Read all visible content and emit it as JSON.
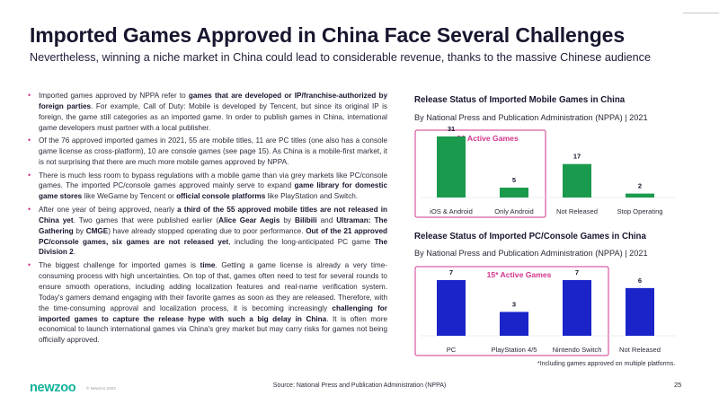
{
  "header": {
    "title": "Imported Games Approved in China Face Several Challenges",
    "subtitle": "Nevertheless, winning a niche market in China could lead to considerable revenue, thanks to the massive Chinese audience"
  },
  "bullets": [
    [
      {
        "t": "Imported games approved by NPPA refer to "
      },
      {
        "t": "games that are developed or IP/franchise-authorized by foreign parties",
        "b": true
      },
      {
        "t": ". For example, Call of Duty: Mobile is developed by Tencent, but since its original IP is foreign, the game still categories as an imported game. In order to publish games in China, international game developers must partner with a local publisher."
      }
    ],
    [
      {
        "t": "Of the 76 approved imported games in 2021, 55 are mobile titles, 11 are PC titles (one also has a console game license as cross-platform), 10 are console games (see page 15). As China is a mobile-first market, it is not surprising that there are much more mobile games approved by NPPA."
      }
    ],
    [
      {
        "t": "There is much less room to bypass regulations with a mobile game than via grey markets like PC/console games. The imported PC/console games approved mainly serve to expand "
      },
      {
        "t": "game library for domestic game stores",
        "b": true
      },
      {
        "t": " like WeGame by Tencent or "
      },
      {
        "t": "official console platforms",
        "b": true
      },
      {
        "t": " like PlayStation and Switch."
      }
    ],
    [
      {
        "t": "After one year of being approved, nearly "
      },
      {
        "t": "a third of the 55 approved mobile titles are not released in China yet",
        "b": true
      },
      {
        "t": ". Two games that were published earlier ("
      },
      {
        "t": "Alice Gear Aegis",
        "b": true
      },
      {
        "t": " by "
      },
      {
        "t": "Bilibili",
        "b": true
      },
      {
        "t": " and "
      },
      {
        "t": "Ultraman: The Gathering",
        "b": true
      },
      {
        "t": " by "
      },
      {
        "t": "CMGE",
        "b": true
      },
      {
        "t": ") have already stopped operating due to poor performance. "
      },
      {
        "t": "Out of the 21 approved PC/console games, six games are not released yet",
        "b": true
      },
      {
        "t": ", including the long-anticipated PC game "
      },
      {
        "t": "The Division 2",
        "b": true
      },
      {
        "t": "."
      }
    ],
    [
      {
        "t": "The biggest challenge for imported games is "
      },
      {
        "t": "time",
        "b": true
      },
      {
        "t": ". Getting a game license is already a very time-consuming process with high uncertainties. On top of that, games often need to test for several rounds to ensure smooth operations, including adding localization features and real-name verification system. Today's gamers demand engaging with their favorite games as soon as they are released. Therefore, with the time-consuming approval and localization process, it is becoming increasingly "
      },
      {
        "t": "challenging for imported games to capture the release hype with such a big delay in China",
        "b": true
      },
      {
        "t": ". It is often more economical to launch international games via China's grey market but may carry risks for games not being officially approved."
      }
    ]
  ],
  "chart_data": [
    {
      "type": "bar",
      "title": "Release Status of Imported Mobile Games in China",
      "subtitle": "By National Press and Publication Administration (NPPA) | 2021",
      "categories": [
        "iOS & Android",
        "Only Android",
        "Not Released",
        "Stop Operating"
      ],
      "values": [
        31,
        5,
        17,
        2
      ],
      "colors": [
        "#1a9a4d",
        "#1a9a4d",
        "#1a9a4d",
        "#1a9a4d"
      ],
      "highlight": {
        "label": "36 Active Games",
        "span": [
          0,
          1
        ],
        "color": "#d2348c"
      }
    },
    {
      "type": "bar",
      "title": "Release Status of Imported PC/Console Games in China",
      "subtitle": "By National Press and Publication Administration (NPPA) | 2021",
      "categories": [
        "PC",
        "PlayStation 4/5",
        "Nintendo Switch",
        "Not Released"
      ],
      "values": [
        7,
        3,
        7,
        6
      ],
      "colors": [
        "#1b24c9",
        "#1b24c9",
        "#1b24c9",
        "#1b24c9"
      ],
      "highlight": {
        "label": "15* Active Games",
        "span": [
          0,
          2
        ],
        "color": "#d2348c"
      }
    }
  ],
  "footnote": "*Including games approved on multiple platforms.",
  "footer": {
    "logo": "newzoo",
    "copyright": "© Newzoo 2022",
    "source": "Source: National Press and Publication Administration (NPPA)",
    "page": "25"
  }
}
